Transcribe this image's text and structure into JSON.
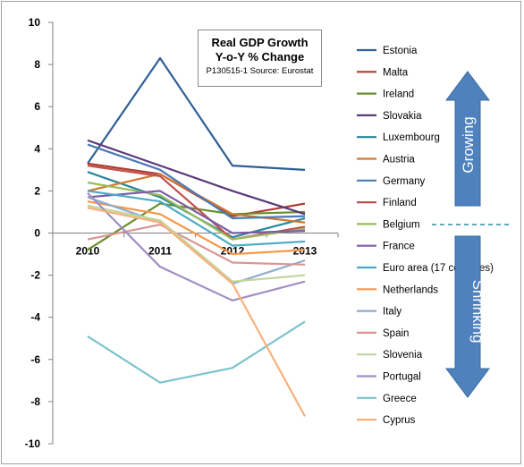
{
  "title": {
    "line1": "Real GDP Growth",
    "line2": "Y-o-Y % Change",
    "note": "P130515-1 Source: Eurostat"
  },
  "arrows": {
    "up_label": "Growing",
    "down_label": "Shrinking",
    "color": "#4f81bd"
  },
  "chart_data": {
    "type": "line",
    "categories": [
      "2010",
      "2011",
      "2012",
      "2013"
    ],
    "ylim": [
      -10,
      10
    ],
    "yticks": [
      10,
      8,
      6,
      4,
      2,
      0,
      -2,
      -4,
      -6,
      -8,
      -10
    ],
    "grid": false,
    "legend_position": "right",
    "series": [
      {
        "name": "Estonia",
        "color": "#2f5f96",
        "values": [
          3.3,
          8.3,
          3.2,
          3.0
        ]
      },
      {
        "name": "Malta",
        "color": "#b03a2e",
        "values": [
          3.3,
          2.8,
          0.8,
          1.4
        ]
      },
      {
        "name": "Ireland",
        "color": "#6a8e2c",
        "values": [
          -0.8,
          1.4,
          0.9,
          1.0
        ]
      },
      {
        "name": "Slovakia",
        "color": "#5a3a7a",
        "values": [
          4.4,
          3.2,
          2.0,
          0.9
        ]
      },
      {
        "name": "Luxembourg",
        "color": "#27869a",
        "values": [
          2.9,
          1.7,
          -0.2,
          0.7
        ]
      },
      {
        "name": "Austria",
        "color": "#d5782f",
        "values": [
          2.0,
          2.8,
          0.9,
          0.5
        ]
      },
      {
        "name": "Germany",
        "color": "#4a7ab5",
        "values": [
          4.2,
          3.0,
          0.7,
          0.8
        ]
      },
      {
        "name": "Finland",
        "color": "#c0504d",
        "values": [
          3.2,
          2.7,
          -0.3,
          0.3
        ]
      },
      {
        "name": "Belgium",
        "color": "#9bbb59",
        "values": [
          2.4,
          1.8,
          -0.3,
          0.2
        ]
      },
      {
        "name": "France",
        "color": "#7d5ca6",
        "values": [
          1.7,
          2.0,
          0.0,
          0.1
        ]
      },
      {
        "name": "Euro area (17 countries)",
        "color": "#4bacc6",
        "values": [
          2.0,
          1.5,
          -0.6,
          -0.4
        ]
      },
      {
        "name": "Netherlands",
        "color": "#f79646",
        "values": [
          1.5,
          0.9,
          -1.0,
          -0.8
        ]
      },
      {
        "name": "Italy",
        "color": "#8eaccf",
        "values": [
          1.7,
          0.5,
          -2.4,
          -1.3
        ]
      },
      {
        "name": "Spain",
        "color": "#d99694",
        "values": [
          -0.3,
          0.4,
          -1.4,
          -1.5
        ]
      },
      {
        "name": "Slovenia",
        "color": "#c3d69b",
        "values": [
          1.3,
          0.6,
          -2.3,
          -2.0
        ]
      },
      {
        "name": "Portugal",
        "color": "#a08fc1",
        "values": [
          1.9,
          -1.6,
          -3.2,
          -2.3
        ]
      },
      {
        "name": "Greece",
        "color": "#7cc3ce",
        "values": [
          -4.9,
          -7.1,
          -6.4,
          -4.2
        ]
      },
      {
        "name": "Cyprus",
        "color": "#fab07a",
        "values": [
          1.2,
          0.5,
          -2.4,
          -8.7
        ]
      }
    ]
  }
}
